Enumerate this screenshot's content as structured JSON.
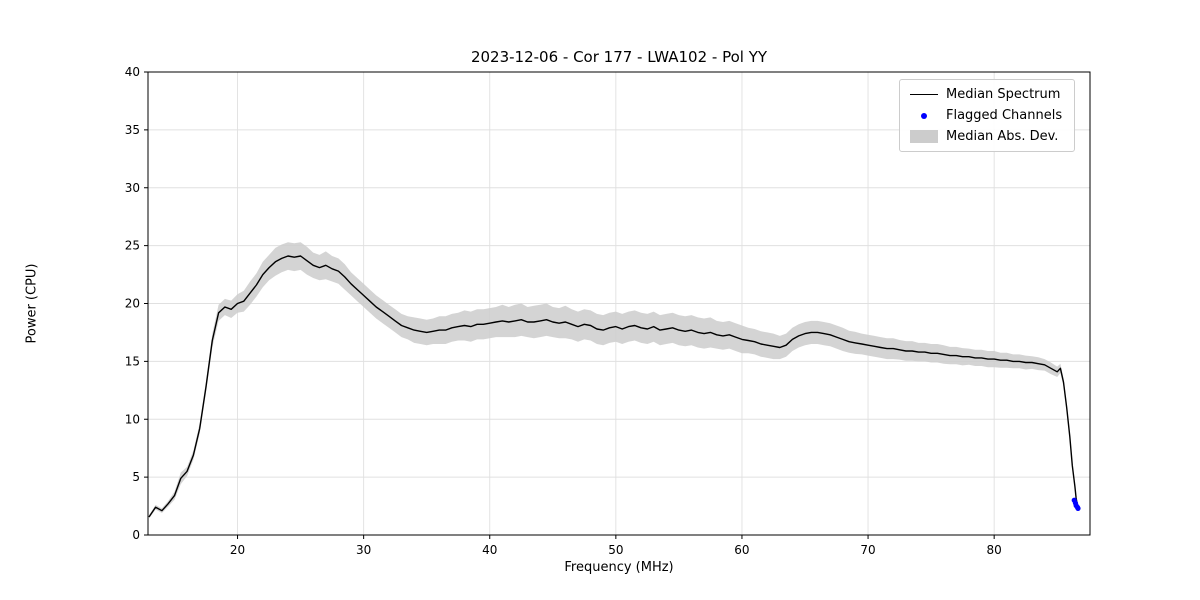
{
  "chart": {
    "title": "2023-12-06 - Cor 177 - LWA102 - Pol YY",
    "xlabel": "Frequency (MHz)",
    "ylabel": "Power (CPU)"
  },
  "legend": {
    "items": [
      {
        "label": "Median Spectrum"
      },
      {
        "label": "Flagged Channels"
      },
      {
        "label": "Median Abs. Dev."
      }
    ]
  },
  "colors": {
    "line": "#000000",
    "flagged": "#0000ff",
    "band": "#cccccc",
    "grid": "#e0e0e0",
    "spine": "#000000"
  },
  "chart_data": {
    "type": "line",
    "title": "2023-12-06 - Cor 177 - LWA102 - Pol YY",
    "xlabel": "Frequency (MHz)",
    "ylabel": "Power (CPU)",
    "xlim": [
      12.9,
      87.6
    ],
    "ylim": [
      0,
      40
    ],
    "x_ticks": [
      20,
      30,
      40,
      50,
      60,
      70,
      80
    ],
    "y_ticks": [
      0,
      5,
      10,
      15,
      20,
      25,
      30,
      35,
      40
    ],
    "grid": true,
    "legend_position": "upper right",
    "series": [
      {
        "name": "Median Spectrum",
        "color": "#000000",
        "note": "points are [freq_MHz, power_CPU, median_abs_dev]; band = y ± mad",
        "points": [
          [
            13.0,
            1.6,
            0.15
          ],
          [
            13.5,
            2.4,
            0.2
          ],
          [
            14.0,
            2.1,
            0.2
          ],
          [
            14.5,
            2.7,
            0.25
          ],
          [
            15.0,
            3.4,
            0.35
          ],
          [
            15.5,
            4.9,
            0.5
          ],
          [
            16.0,
            5.5,
            0.4
          ],
          [
            16.5,
            6.9,
            0.4
          ],
          [
            17.0,
            9.2,
            0.45
          ],
          [
            17.5,
            12.8,
            0.5
          ],
          [
            18.0,
            16.8,
            0.6
          ],
          [
            18.5,
            19.2,
            0.7
          ],
          [
            19.0,
            19.7,
            0.7
          ],
          [
            19.5,
            19.5,
            0.75
          ],
          [
            20.0,
            20.0,
            0.8
          ],
          [
            20.5,
            20.2,
            0.9
          ],
          [
            21.0,
            20.9,
            1.0
          ],
          [
            21.5,
            21.6,
            1.0
          ],
          [
            22.0,
            22.5,
            1.1
          ],
          [
            22.5,
            23.1,
            1.1
          ],
          [
            23.0,
            23.6,
            1.2
          ],
          [
            23.5,
            23.9,
            1.2
          ],
          [
            24.0,
            24.1,
            1.2
          ],
          [
            24.5,
            24.0,
            1.2
          ],
          [
            25.0,
            24.1,
            1.2
          ],
          [
            25.5,
            23.7,
            1.2
          ],
          [
            26.0,
            23.3,
            1.1
          ],
          [
            26.5,
            23.1,
            1.1
          ],
          [
            27.0,
            23.3,
            1.2
          ],
          [
            27.5,
            23.0,
            1.1
          ],
          [
            28.0,
            22.8,
            1.1
          ],
          [
            28.5,
            22.3,
            1.1
          ],
          [
            29.0,
            21.7,
            1.0
          ],
          [
            29.5,
            21.2,
            1.0
          ],
          [
            30.0,
            20.7,
            1.0
          ],
          [
            30.5,
            20.2,
            1.0
          ],
          [
            31.0,
            19.7,
            1.0
          ],
          [
            31.5,
            19.3,
            1.0
          ],
          [
            32.0,
            18.9,
            1.0
          ],
          [
            32.5,
            18.5,
            1.0
          ],
          [
            33.0,
            18.1,
            1.0
          ],
          [
            33.5,
            17.9,
            1.0
          ],
          [
            34.0,
            17.7,
            1.1
          ],
          [
            34.5,
            17.6,
            1.1
          ],
          [
            35.0,
            17.5,
            1.1
          ],
          [
            35.5,
            17.6,
            1.1
          ],
          [
            36.0,
            17.7,
            1.2
          ],
          [
            36.5,
            17.7,
            1.2
          ],
          [
            37.0,
            17.9,
            1.2
          ],
          [
            37.5,
            18.0,
            1.2
          ],
          [
            38.0,
            18.1,
            1.3
          ],
          [
            38.5,
            18.0,
            1.3
          ],
          [
            39.0,
            18.2,
            1.3
          ],
          [
            39.5,
            18.2,
            1.3
          ],
          [
            40.0,
            18.3,
            1.3
          ],
          [
            40.5,
            18.4,
            1.3
          ],
          [
            41.0,
            18.5,
            1.4
          ],
          [
            41.5,
            18.4,
            1.3
          ],
          [
            42.0,
            18.5,
            1.4
          ],
          [
            42.5,
            18.6,
            1.4
          ],
          [
            43.0,
            18.4,
            1.3
          ],
          [
            43.5,
            18.4,
            1.4
          ],
          [
            44.0,
            18.5,
            1.4
          ],
          [
            44.5,
            18.6,
            1.4
          ],
          [
            45.0,
            18.4,
            1.3
          ],
          [
            45.5,
            18.3,
            1.3
          ],
          [
            46.0,
            18.4,
            1.4
          ],
          [
            46.5,
            18.2,
            1.3
          ],
          [
            47.0,
            18.0,
            1.3
          ],
          [
            47.5,
            18.2,
            1.3
          ],
          [
            48.0,
            18.1,
            1.3
          ],
          [
            48.5,
            17.8,
            1.3
          ],
          [
            49.0,
            17.7,
            1.3
          ],
          [
            49.5,
            17.9,
            1.3
          ],
          [
            50.0,
            18.0,
            1.3
          ],
          [
            50.5,
            17.8,
            1.3
          ],
          [
            51.0,
            18.0,
            1.3
          ],
          [
            51.5,
            18.1,
            1.3
          ],
          [
            52.0,
            17.9,
            1.3
          ],
          [
            52.5,
            17.8,
            1.3
          ],
          [
            53.0,
            18.0,
            1.3
          ],
          [
            53.5,
            17.7,
            1.3
          ],
          [
            54.0,
            17.8,
            1.3
          ],
          [
            54.5,
            17.9,
            1.3
          ],
          [
            55.0,
            17.7,
            1.3
          ],
          [
            55.5,
            17.6,
            1.3
          ],
          [
            56.0,
            17.7,
            1.3
          ],
          [
            56.5,
            17.5,
            1.3
          ],
          [
            57.0,
            17.4,
            1.3
          ],
          [
            57.5,
            17.5,
            1.3
          ],
          [
            58.0,
            17.3,
            1.2
          ],
          [
            58.5,
            17.2,
            1.2
          ],
          [
            59.0,
            17.3,
            1.2
          ],
          [
            59.5,
            17.1,
            1.2
          ],
          [
            60.0,
            16.9,
            1.2
          ],
          [
            60.5,
            16.8,
            1.1
          ],
          [
            61.0,
            16.7,
            1.1
          ],
          [
            61.5,
            16.5,
            1.1
          ],
          [
            62.0,
            16.4,
            1.1
          ],
          [
            62.5,
            16.3,
            1.1
          ],
          [
            63.0,
            16.2,
            1.0
          ],
          [
            63.5,
            16.4,
            1.0
          ],
          [
            64.0,
            16.9,
            1.0
          ],
          [
            64.5,
            17.2,
            1.0
          ],
          [
            65.0,
            17.4,
            1.0
          ],
          [
            65.5,
            17.5,
            1.0
          ],
          [
            66.0,
            17.5,
            1.0
          ],
          [
            66.5,
            17.4,
            1.0
          ],
          [
            67.0,
            17.3,
            1.0
          ],
          [
            67.5,
            17.1,
            1.0
          ],
          [
            68.0,
            16.9,
            1.0
          ],
          [
            68.5,
            16.7,
            0.95
          ],
          [
            69.0,
            16.6,
            0.95
          ],
          [
            69.5,
            16.5,
            0.9
          ],
          [
            70.0,
            16.4,
            0.9
          ],
          [
            70.5,
            16.3,
            0.9
          ],
          [
            71.0,
            16.2,
            0.9
          ],
          [
            71.5,
            16.1,
            0.9
          ],
          [
            72.0,
            16.1,
            0.9
          ],
          [
            72.5,
            16.0,
            0.85
          ],
          [
            73.0,
            15.9,
            0.85
          ],
          [
            73.5,
            15.9,
            0.85
          ],
          [
            74.0,
            15.8,
            0.8
          ],
          [
            74.5,
            15.8,
            0.8
          ],
          [
            75.0,
            15.7,
            0.8
          ],
          [
            75.5,
            15.7,
            0.8
          ],
          [
            76.0,
            15.6,
            0.8
          ],
          [
            76.5,
            15.5,
            0.75
          ],
          [
            77.0,
            15.5,
            0.75
          ],
          [
            77.5,
            15.4,
            0.75
          ],
          [
            78.0,
            15.4,
            0.7
          ],
          [
            78.5,
            15.3,
            0.7
          ],
          [
            79.0,
            15.3,
            0.7
          ],
          [
            79.5,
            15.2,
            0.7
          ],
          [
            80.0,
            15.2,
            0.7
          ],
          [
            80.5,
            15.1,
            0.65
          ],
          [
            81.0,
            15.1,
            0.65
          ],
          [
            81.5,
            15.0,
            0.6
          ],
          [
            82.0,
            15.0,
            0.6
          ],
          [
            82.5,
            14.9,
            0.6
          ],
          [
            83.0,
            14.9,
            0.55
          ],
          [
            83.5,
            14.8,
            0.55
          ],
          [
            84.0,
            14.7,
            0.5
          ],
          [
            84.5,
            14.4,
            0.5
          ],
          [
            85.0,
            14.1,
            0.45
          ],
          [
            85.25,
            14.4,
            0.4
          ],
          [
            85.5,
            13.2,
            0.35
          ],
          [
            85.75,
            11.0,
            0.3
          ],
          [
            86.0,
            8.5,
            0.25
          ],
          [
            86.2,
            6.0,
            0.2
          ],
          [
            86.4,
            4.2,
            0.2
          ],
          [
            86.5,
            3.2,
            0.15
          ],
          [
            86.6,
            2.6,
            0.15
          ]
        ]
      },
      {
        "name": "Flagged Channels",
        "color": "#0000ff",
        "marker": "dot",
        "points": [
          [
            86.35,
            3.0
          ],
          [
            86.45,
            2.75
          ],
          [
            86.5,
            2.55
          ],
          [
            86.6,
            2.4
          ],
          [
            86.65,
            2.3
          ]
        ]
      }
    ],
    "band": {
      "name": "Median Abs. Dev.",
      "color": "#cccccc",
      "derived_from": "series 0: y ± mad"
    }
  }
}
